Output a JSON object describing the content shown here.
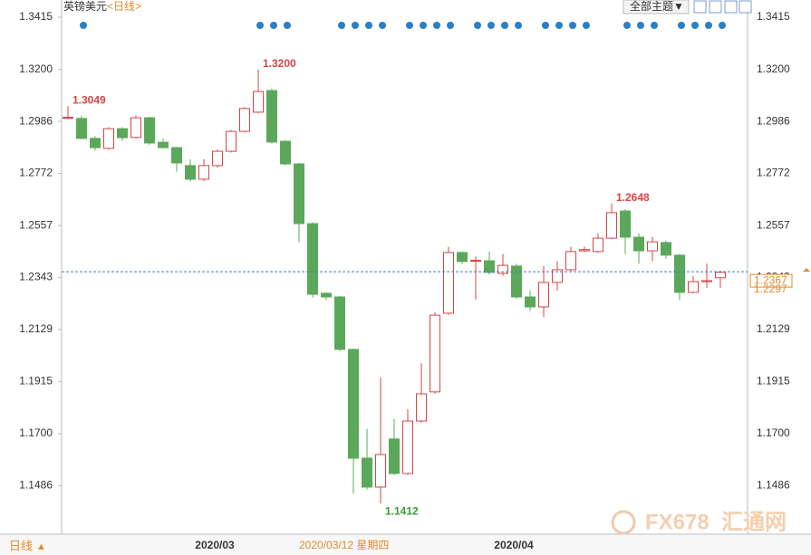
{
  "chart_data": {
    "type": "candlestick",
    "title": "英镑美元",
    "subtitle": "<日线>",
    "theme_button": "全部主题▼",
    "period_label": "日线",
    "period_toggle": "▲",
    "cursor_label": "2020/03/12 星期四",
    "watermark": [
      "FX678",
      "汇通网"
    ],
    "categories": [
      null,
      null,
      null,
      null,
      null,
      null,
      null,
      null,
      null,
      null,
      null,
      "2020/03",
      null,
      null,
      null,
      null,
      null,
      null,
      null,
      null,
      null,
      null,
      null,
      null,
      null,
      null,
      null,
      null,
      null,
      null,
      null,
      null,
      null,
      "2020/04",
      null,
      null,
      null,
      null,
      null,
      null,
      null,
      null,
      null,
      null,
      null,
      null,
      null,
      null,
      null
    ],
    "open": [
      1.3,
      1.2998,
      1.2916,
      1.2875,
      1.2956,
      1.292,
      1.3001,
      1.29,
      1.2878,
      1.2804,
      1.2748,
      1.2804,
      1.2863,
      1.2945,
      1.3024,
      1.3113,
      1.2904,
      1.2811,
      1.2565,
      1.2278,
      1.2263,
      1.2047,
      1.1599,
      1.148,
      1.1678,
      1.1536,
      1.1752,
      1.1872,
      1.2196,
      1.2446,
      1.2412,
      1.2412,
      1.236,
      1.239,
      1.2263,
      1.2222,
      1.2323,
      1.2375,
      1.2453,
      1.245,
      1.2505,
      1.2617,
      1.2509,
      1.2453,
      1.2487,
      1.2435,
      1.2282,
      1.2326,
      1.2342
    ],
    "high": [
      1.3049,
      1.301,
      1.2925,
      1.2962,
      1.2962,
      1.301,
      1.3005,
      1.2915,
      1.2882,
      1.283,
      1.283,
      1.287,
      1.295,
      1.3045,
      1.32,
      1.312,
      1.291,
      1.2815,
      1.257,
      1.2282,
      1.2266,
      1.205,
      1.172,
      1.1931,
      1.176,
      1.18,
      1.199,
      1.22,
      1.247,
      1.245,
      1.243,
      1.245,
      1.244,
      1.24,
      1.229,
      1.239,
      1.241,
      1.247,
      1.247,
      1.2525,
      1.2648,
      1.2625,
      1.2525,
      1.251,
      1.2495,
      1.244,
      1.235,
      1.24,
      1.237
    ],
    "low": [
      1.2995,
      1.2912,
      1.2866,
      1.287,
      1.2905,
      1.2915,
      1.289,
      1.2875,
      1.2779,
      1.274,
      1.274,
      1.2795,
      1.2858,
      1.294,
      1.302,
      1.2895,
      1.2805,
      1.2489,
      1.226,
      1.225,
      1.204,
      1.1453,
      1.147,
      1.1412,
      1.153,
      1.153,
      1.1745,
      1.1865,
      1.219,
      1.24,
      1.2252,
      1.2355,
      1.235,
      1.2255,
      1.2205,
      1.218,
      1.229,
      1.237,
      1.2448,
      1.2445,
      1.25,
      1.244,
      1.24,
      1.241,
      1.242,
      1.225,
      1.2278,
      1.23,
      1.23
    ],
    "close": [
      1.3003,
      1.2916,
      1.2878,
      1.2956,
      1.2919,
      1.3001,
      1.2897,
      1.2878,
      1.2815,
      1.2748,
      1.2804,
      1.2863,
      1.2945,
      1.3039,
      1.3109,
      1.2901,
      1.2811,
      1.2565,
      1.2274,
      1.2263,
      1.2047,
      1.1599,
      1.148,
      1.1614,
      1.1536,
      1.1752,
      1.1864,
      1.2188,
      1.2446,
      1.2409,
      1.2414,
      1.2364,
      1.2393,
      1.2263,
      1.2222,
      1.2323,
      1.2375,
      1.245,
      1.2458,
      1.2505,
      1.261,
      1.2509,
      1.2453,
      1.249,
      1.2435,
      1.2282,
      1.2326,
      1.233,
      1.2364
    ],
    "high_labels": [
      "1.3049",
      null,
      null,
      null,
      null,
      null,
      null,
      null,
      null,
      null,
      null,
      null,
      null,
      null,
      "1.3200",
      null,
      null,
      null,
      null,
      null,
      null,
      null,
      null,
      null,
      null,
      null,
      null,
      null,
      null,
      null,
      null,
      null,
      null,
      null,
      null,
      null,
      null,
      null,
      null,
      null,
      "1.2648",
      null,
      null,
      null,
      null,
      null,
      null,
      null,
      null
    ],
    "low_labels": [
      null,
      null,
      null,
      null,
      null,
      null,
      null,
      null,
      null,
      null,
      null,
      null,
      null,
      null,
      null,
      null,
      null,
      null,
      null,
      null,
      null,
      null,
      null,
      "1.1412",
      null,
      null,
      null,
      null,
      null,
      null,
      null,
      null,
      null,
      null,
      null,
      null,
      null,
      null,
      null,
      null,
      null,
      null,
      null,
      null,
      null,
      null,
      null,
      null,
      null
    ],
    "up_color": "#d64545",
    "down_color": "#5ba85b",
    "ylim": [
      1.1286,
      1.3486
    ],
    "yticks": [
      {
        "value": 1.3415,
        "label": "1.3415"
      },
      {
        "value": 1.32,
        "label": "1.3200"
      },
      {
        "value": 1.2986,
        "label": "1.2986"
      },
      {
        "value": 1.2772,
        "label": "1.2772"
      },
      {
        "value": 1.2557,
        "label": "1.2557"
      },
      {
        "value": 1.2343,
        "label": "1.2343"
      },
      {
        "value": 1.2129,
        "label": "1.2129"
      },
      {
        "value": 1.1915,
        "label": "1.1915"
      },
      {
        "value": 1.17,
        "label": "1.1700"
      },
      {
        "value": 1.1486,
        "label": "1.1486"
      }
    ],
    "current_price": 1.2367,
    "second_price": 1.2297
  }
}
